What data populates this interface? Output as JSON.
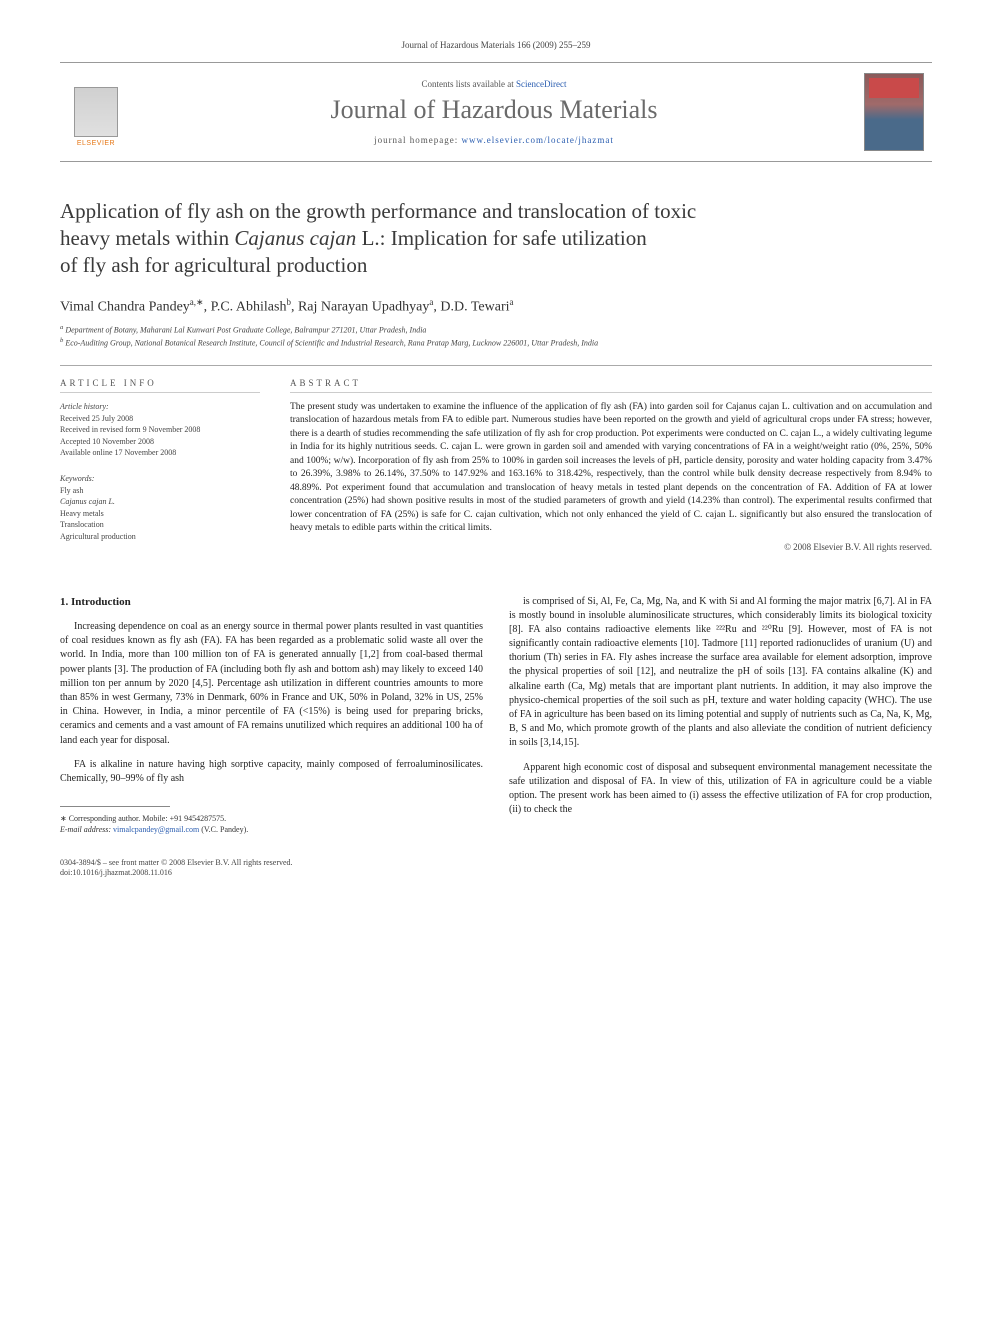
{
  "header": {
    "running_head": "Journal of Hazardous Materials 166 (2009) 255–259"
  },
  "masthead": {
    "contents_prefix": "Contents lists available at ",
    "contents_link": "ScienceDirect",
    "journal_name": "Journal of Hazardous Materials",
    "homepage_prefix": "journal homepage: ",
    "homepage_url": "www.elsevier.com/locate/jhazmat",
    "publisher_logo_text": "ELSEVIER"
  },
  "article": {
    "title_line1": "Application of fly ash on the growth performance and translocation of toxic",
    "title_line2_pre": "heavy metals within ",
    "title_line2_ital": "Cajanus cajan",
    "title_line2_post": " L.: Implication for safe utilization",
    "title_line3": "of fly ash for agricultural production",
    "authors_html": "Vimal Chandra Pandey",
    "author1_sup": "a,∗",
    "author2": ", P.C. Abhilash",
    "author2_sup": "b",
    "author3": ", Raj Narayan Upadhyay",
    "author3_sup": "a",
    "author4": ", D.D. Tewari",
    "author4_sup": "a",
    "affiliations": {
      "a": "Department of Botany, Maharani Lal Kunwari Post Graduate College, Balrampur 271201, Uttar Pradesh, India",
      "b": "Eco-Auditing Group, National Botanical Research Institute, Council of Scientific and Industrial Research, Rana Pratap Marg, Lucknow 226001, Uttar Pradesh, India"
    }
  },
  "info": {
    "heading": "ARTICLE INFO",
    "history_label": "Article history:",
    "history": [
      "Received 25 July 2008",
      "Received in revised form 9 November 2008",
      "Accepted 10 November 2008",
      "Available online 17 November 2008"
    ],
    "keywords_label": "Keywords:",
    "keywords": [
      "Fly ash",
      "Cajanus cajan L.",
      "Heavy metals",
      "Translocation",
      "Agricultural production"
    ]
  },
  "abstract": {
    "heading": "ABSTRACT",
    "text": "The present study was undertaken to examine the influence of the application of fly ash (FA) into garden soil for Cajanus cajan L. cultivation and on accumulation and translocation of hazardous metals from FA to edible part. Numerous studies have been reported on the growth and yield of agricultural crops under FA stress; however, there is a dearth of studies recommending the safe utilization of fly ash for crop production. Pot experiments were conducted on C. cajan L., a widely cultivating legume in India for its highly nutritious seeds. C. cajan L. were grown in garden soil and amended with varying concentrations of FA in a weight/weight ratio (0%, 25%, 50% and 100%; w/w). Incorporation of fly ash from 25% to 100% in garden soil increases the levels of pH, particle density, porosity and water holding capacity from 3.47% to 26.39%, 3.98% to 26.14%, 37.50% to 147.92% and 163.16% to 318.42%, respectively, than the control while bulk density decrease respectively from 8.94% to 48.89%. Pot experiment found that accumulation and translocation of heavy metals in tested plant depends on the concentration of FA. Addition of FA at lower concentration (25%) had shown positive results in most of the studied parameters of growth and yield (14.23% than control). The experimental results confirmed that lower concentration of FA (25%) is safe for C. cajan cultivation, which not only enhanced the yield of C. cajan L. significantly but also ensured the translocation of heavy metals to edible parts within the critical limits.",
    "copyright": "© 2008 Elsevier B.V. All rights reserved."
  },
  "body": {
    "section_heading": "1. Introduction",
    "left_p1": "Increasing dependence on coal as an energy source in thermal power plants resulted in vast quantities of coal residues known as fly ash (FA). FA has been regarded as a problematic solid waste all over the world. In India, more than 100 million ton of FA is generated annually [1,2] from coal-based thermal power plants [3]. The production of FA (including both fly ash and bottom ash) may likely to exceed 140 million ton per annum by 2020 [4,5]. Percentage ash utilization in different countries amounts to more than 85% in west Germany, 73% in Denmark, 60% in France and UK, 50% in Poland, 32% in US, 25% in China. However, in India, a minor percentile of FA (<15%) is being used for preparing bricks, ceramics and cements and a vast amount of FA remains unutilized which requires an additional 100 ha of land each year for disposal.",
    "left_p2": "FA is alkaline in nature having high sorptive capacity, mainly composed of ferroaluminosilicates. Chemically, 90–99% of fly ash",
    "right_p1": "is comprised of Si, Al, Fe, Ca, Mg, Na, and K with Si and Al forming the major matrix [6,7]. Al in FA is mostly bound in insoluble aluminosilicate structures, which considerably limits its biological toxicity [8]. FA also contains radioactive elements like ²²²Ru and ²²⁰Ru [9]. However, most of FA is not significantly contain radioactive elements [10]. Tadmore [11] reported radionuclides of uranium (U) and thorium (Th) series in FA. Fly ashes increase the surface area available for element adsorption, improve the physical properties of soil [12], and neutralize the pH of soils [13]. FA contains alkaline (K) and alkaline earth (Ca, Mg) metals that are important plant nutrients. In addition, it may also improve the physico-chemical properties of the soil such as pH, texture and water holding capacity (WHC). The use of FA in agriculture has been based on its liming potential and supply of nutrients such as Ca, Na, K, Mg, B, S and Mo, which promote growth of the plants and also alleviate the condition of nutrient deficiency in soils [3,14,15].",
    "right_p2": "Apparent high economic cost of disposal and subsequent environmental management necessitate the safe utilization and disposal of FA. In view of this, utilization of FA in agriculture could be a viable option. The present work has been aimed to (i) assess the effective utilization of FA for crop production, (ii) to check the"
  },
  "footnotes": {
    "corr": "∗ Corresponding author. Mobile: +91 9454287575.",
    "email_label": "E-mail address: ",
    "email": "vimalcpandey@gmail.com",
    "email_post": " (V.C. Pandey)."
  },
  "footer": {
    "line1": "0304-3894/$ – see front matter © 2008 Elsevier B.V. All rights reserved.",
    "doi": "doi:10.1016/j.jhazmat.2008.11.016"
  },
  "colors": {
    "link": "#2a5db0",
    "elsevier_orange": "#e67817",
    "journal_grey": "#6a6a6a",
    "rule_grey": "#999"
  }
}
